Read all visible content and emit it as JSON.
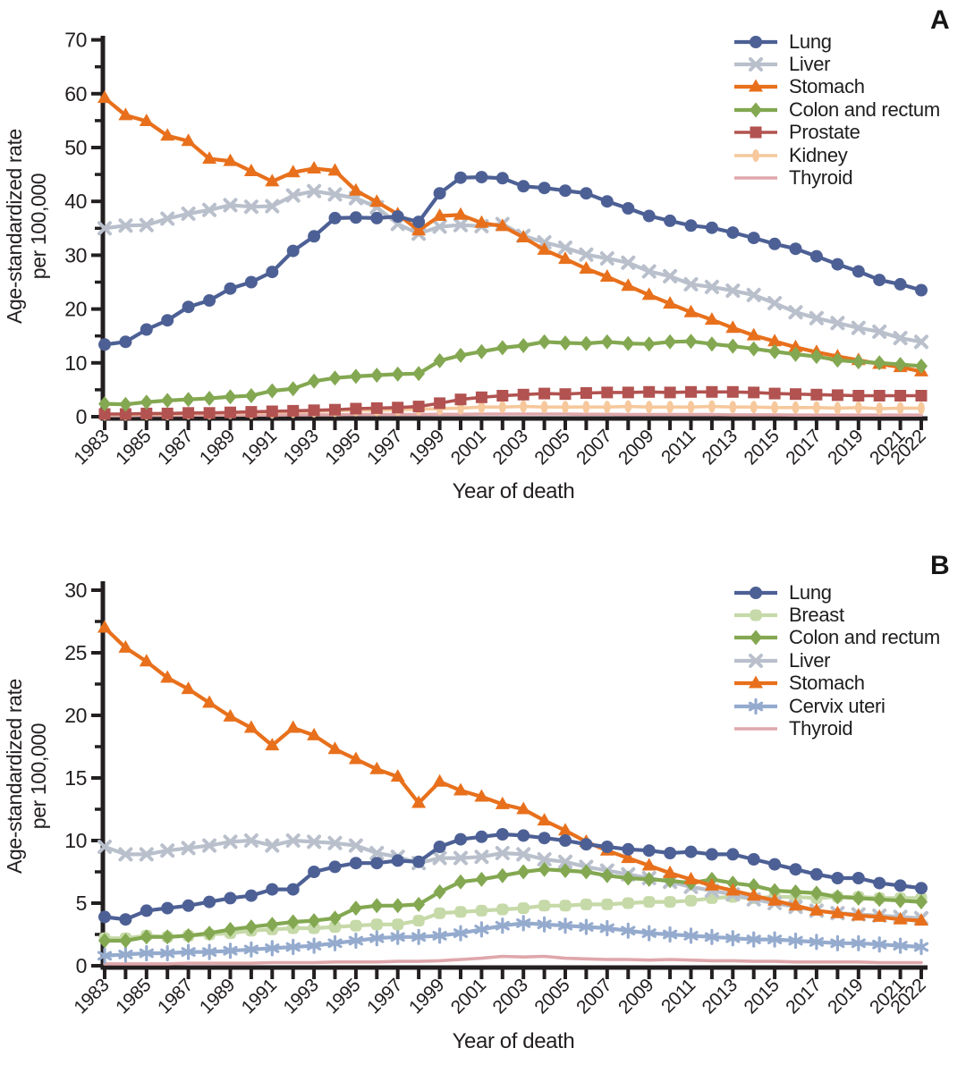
{
  "figure": {
    "background": "#ffffff",
    "axis_color": "#231f20",
    "text_color": "#231f20"
  },
  "chart_data": [
    {
      "type": "line",
      "panel_label": "A",
      "title": "",
      "xlabel": "Year of death",
      "ylabel_line1": "Age-standardized rate",
      "ylabel_line2": "per 100,000",
      "x": [
        1983,
        1984,
        1985,
        1986,
        1987,
        1988,
        1989,
        1990,
        1991,
        1992,
        1993,
        1994,
        1995,
        1996,
        1997,
        1998,
        1999,
        2000,
        2001,
        2002,
        2003,
        2004,
        2005,
        2006,
        2007,
        2008,
        2009,
        2010,
        2011,
        2012,
        2013,
        2014,
        2015,
        2016,
        2017,
        2018,
        2019,
        2020,
        2021,
        2022
      ],
      "x_tick_labels": [
        1983,
        1985,
        1987,
        1989,
        1991,
        1993,
        1995,
        1997,
        1999,
        2001,
        2003,
        2005,
        2007,
        2009,
        2011,
        2013,
        2015,
        2017,
        2019,
        2021,
        2022
      ],
      "ylim": [
        0,
        70
      ],
      "ytick_step": 10,
      "yminor_step": 5,
      "grid": false,
      "legend_position": "top-right",
      "draw_order": [
        6,
        5,
        4,
        1,
        2,
        3,
        0
      ],
      "series": [
        {
          "name": "Lung",
          "color": "#4d6095",
          "marker": "circle",
          "values": [
            13.4,
            13.9,
            16.2,
            17.9,
            20.4,
            21.6,
            23.8,
            25.0,
            26.9,
            30.8,
            33.5,
            36.9,
            37.0,
            36.9,
            37.2,
            36.2,
            41.5,
            44.4,
            44.5,
            44.3,
            42.8,
            42.5,
            42.0,
            41.5,
            40.0,
            38.7,
            37.3,
            36.4,
            35.5,
            35.1,
            34.2,
            33.2,
            32.1,
            31.2,
            29.8,
            28.3,
            27.0,
            25.4,
            24.6,
            23.5
          ]
        },
        {
          "name": "Liver",
          "color": "#b9c0cc",
          "marker": "x",
          "values": [
            35.0,
            35.5,
            35.6,
            36.8,
            37.7,
            38.4,
            39.3,
            39.0,
            39.1,
            41.1,
            41.9,
            41.3,
            40.6,
            38.9,
            35.8,
            34.0,
            35.3,
            35.6,
            35.4,
            35.8,
            33.6,
            32.4,
            31.4,
            30.1,
            29.4,
            28.6,
            27.0,
            26.1,
            24.6,
            24.1,
            23.4,
            22.6,
            21.1,
            19.4,
            18.3,
            17.4,
            16.5,
            15.8,
            14.6,
            13.9
          ]
        },
        {
          "name": "Stomach",
          "color": "#e8701c",
          "marker": "triangle",
          "values": [
            59.2,
            56.0,
            54.9,
            52.2,
            51.2,
            47.9,
            47.5,
            45.6,
            43.7,
            45.4,
            46.1,
            45.7,
            42.0,
            39.9,
            37.6,
            34.6,
            37.3,
            37.5,
            36.0,
            35.4,
            33.3,
            31.0,
            29.3,
            27.5,
            26.0,
            24.3,
            22.6,
            21.0,
            19.4,
            18.0,
            16.5,
            15.1,
            14.0,
            12.9,
            12.0,
            11.2,
            10.5,
            9.8,
            9.2,
            8.4
          ]
        },
        {
          "name": "Colon and rectum",
          "color": "#83a851",
          "marker": "diamond",
          "values": [
            2.4,
            2.3,
            2.7,
            3.0,
            3.2,
            3.4,
            3.7,
            3.9,
            4.8,
            5.2,
            6.6,
            7.2,
            7.5,
            7.7,
            7.9,
            8.0,
            10.4,
            11.4,
            12.1,
            12.8,
            13.2,
            13.9,
            13.7,
            13.6,
            13.9,
            13.6,
            13.5,
            13.9,
            14.0,
            13.5,
            13.1,
            12.6,
            12.1,
            11.6,
            11.2,
            10.5,
            10.2,
            10.0,
            9.7,
            9.4
          ]
        },
        {
          "name": "Prostate",
          "color": "#b25351",
          "marker": "square",
          "values": [
            0.5,
            0.5,
            0.6,
            0.6,
            0.7,
            0.7,
            0.8,
            0.9,
            1.0,
            1.1,
            1.2,
            1.3,
            1.5,
            1.6,
            1.7,
            1.9,
            2.5,
            3.2,
            3.6,
            3.9,
            4.1,
            4.3,
            4.2,
            4.4,
            4.5,
            4.5,
            4.6,
            4.5,
            4.6,
            4.6,
            4.6,
            4.5,
            4.3,
            4.2,
            4.1,
            4.0,
            3.9,
            3.9,
            3.9,
            3.9
          ]
        },
        {
          "name": "Kidney",
          "color": "#f6c89b",
          "marker": "ellipse",
          "values": [
            0.4,
            0.4,
            0.5,
            0.5,
            0.6,
            0.6,
            0.7,
            0.7,
            0.8,
            0.9,
            1.0,
            1.1,
            1.2,
            1.2,
            1.3,
            1.4,
            1.5,
            1.6,
            1.8,
            1.8,
            1.9,
            1.8,
            1.8,
            1.8,
            1.8,
            1.9,
            1.8,
            1.8,
            1.8,
            1.9,
            1.8,
            1.8,
            1.7,
            1.7,
            1.7,
            1.6,
            1.7,
            1.5,
            1.6,
            1.6
          ]
        },
        {
          "name": "Thyroid",
          "color": "#dfa7ab",
          "marker": "none",
          "values": [
            0.2,
            0.2,
            0.25,
            0.25,
            0.3,
            0.3,
            0.3,
            0.3,
            0.3,
            0.35,
            0.35,
            0.35,
            0.4,
            0.4,
            0.4,
            0.4,
            0.45,
            0.45,
            0.5,
            0.5,
            0.5,
            0.5,
            0.5,
            0.45,
            0.45,
            0.4,
            0.4,
            0.4,
            0.4,
            0.4,
            0.35,
            0.35,
            0.35,
            0.3,
            0.3,
            0.3,
            0.3,
            0.3,
            0.3,
            0.3
          ]
        }
      ]
    },
    {
      "type": "line",
      "panel_label": "B",
      "title": "",
      "xlabel": "Year of death",
      "ylabel_line1": "Age-standardized rate",
      "ylabel_line2": "per 100,000",
      "x": [
        1983,
        1984,
        1985,
        1986,
        1987,
        1988,
        1989,
        1990,
        1991,
        1992,
        1993,
        1994,
        1995,
        1996,
        1997,
        1998,
        1999,
        2000,
        2001,
        2002,
        2003,
        2004,
        2005,
        2006,
        2007,
        2008,
        2009,
        2010,
        2011,
        2012,
        2013,
        2014,
        2015,
        2016,
        2017,
        2018,
        2019,
        2020,
        2021,
        2022
      ],
      "x_tick_labels": [
        1983,
        1985,
        1987,
        1989,
        1991,
        1993,
        1995,
        1997,
        1999,
        2001,
        2003,
        2005,
        2007,
        2009,
        2011,
        2013,
        2015,
        2017,
        2019,
        2021,
        2022
      ],
      "ylim": [
        0,
        30
      ],
      "ytick_step": 5,
      "yminor_step": 2.5,
      "grid": false,
      "legend_position": "top-right",
      "draw_order": [
        6,
        5,
        1,
        3,
        2,
        4,
        0
      ],
      "series": [
        {
          "name": "Lung",
          "color": "#4d6095",
          "marker": "circle",
          "values": [
            3.9,
            3.7,
            4.4,
            4.6,
            4.8,
            5.1,
            5.4,
            5.6,
            6.1,
            6.1,
            7.5,
            7.9,
            8.2,
            8.2,
            8.4,
            8.3,
            9.5,
            10.1,
            10.3,
            10.5,
            10.4,
            10.2,
            10.0,
            9.7,
            9.5,
            9.3,
            9.2,
            9.0,
            9.1,
            8.9,
            8.9,
            8.5,
            8.1,
            7.7,
            7.3,
            7.0,
            7.0,
            6.6,
            6.4,
            6.2
          ]
        },
        {
          "name": "Breast",
          "color": "#c6d9a8",
          "marker": "square-round",
          "values": [
            2.2,
            2.2,
            2.4,
            2.3,
            2.4,
            2.5,
            2.6,
            2.8,
            2.9,
            3.0,
            3.0,
            3.1,
            3.2,
            3.3,
            3.3,
            3.6,
            4.2,
            4.3,
            4.4,
            4.5,
            4.6,
            4.8,
            4.8,
            4.9,
            4.9,
            5.0,
            5.1,
            5.1,
            5.2,
            5.4,
            5.5,
            5.4,
            5.5,
            5.5,
            5.4,
            5.5,
            5.5,
            5.4,
            5.4,
            5.4
          ]
        },
        {
          "name": "Colon and rectum",
          "color": "#83a851",
          "marker": "diamond",
          "values": [
            2.0,
            2.0,
            2.3,
            2.3,
            2.4,
            2.6,
            2.9,
            3.1,
            3.3,
            3.5,
            3.6,
            3.8,
            4.6,
            4.8,
            4.8,
            4.9,
            5.9,
            6.7,
            6.9,
            7.2,
            7.5,
            7.7,
            7.6,
            7.5,
            7.2,
            7.0,
            6.9,
            6.8,
            6.6,
            6.9,
            6.6,
            6.4,
            6.0,
            5.9,
            5.8,
            5.5,
            5.4,
            5.3,
            5.2,
            5.1
          ]
        },
        {
          "name": "Liver",
          "color": "#b9c0cc",
          "marker": "x",
          "values": [
            9.5,
            8.9,
            8.9,
            9.2,
            9.4,
            9.6,
            9.9,
            10.0,
            9.6,
            10.0,
            9.9,
            9.8,
            9.6,
            9.0,
            8.7,
            8.2,
            8.6,
            8.6,
            8.7,
            9.0,
            8.9,
            8.5,
            8.3,
            7.9,
            7.6,
            7.3,
            7.0,
            6.7,
            6.3,
            6.0,
            5.7,
            5.3,
            5.0,
            4.7,
            4.4,
            4.2,
            4.1,
            4.0,
            3.9,
            3.8
          ]
        },
        {
          "name": "Stomach",
          "color": "#e8701c",
          "marker": "triangle",
          "values": [
            27.0,
            25.4,
            24.3,
            23.0,
            22.1,
            21.0,
            19.9,
            19.0,
            17.6,
            19.0,
            18.4,
            17.3,
            16.5,
            15.7,
            15.1,
            13.0,
            14.7,
            14.0,
            13.5,
            12.9,
            12.5,
            11.6,
            10.8,
            9.9,
            9.2,
            8.6,
            8.0,
            7.4,
            6.9,
            6.4,
            6.0,
            5.6,
            5.2,
            4.8,
            4.4,
            4.2,
            4.0,
            3.9,
            3.7,
            3.6
          ]
        },
        {
          "name": "Cervix uteri",
          "color": "#95abce",
          "marker": "asterisk",
          "values": [
            0.8,
            0.9,
            1.0,
            1.0,
            1.1,
            1.1,
            1.2,
            1.3,
            1.4,
            1.5,
            1.6,
            1.8,
            2.0,
            2.2,
            2.3,
            2.3,
            2.4,
            2.6,
            2.9,
            3.2,
            3.4,
            3.3,
            3.2,
            3.1,
            3.0,
            2.8,
            2.6,
            2.5,
            2.4,
            2.3,
            2.2,
            2.1,
            2.1,
            2.0,
            1.9,
            1.8,
            1.8,
            1.7,
            1.6,
            1.5
          ]
        },
        {
          "name": "Thyroid",
          "color": "#dfa7ab",
          "marker": "none",
          "values": [
            0.15,
            0.15,
            0.15,
            0.15,
            0.2,
            0.2,
            0.2,
            0.2,
            0.25,
            0.25,
            0.25,
            0.3,
            0.3,
            0.3,
            0.35,
            0.35,
            0.4,
            0.5,
            0.6,
            0.75,
            0.7,
            0.75,
            0.6,
            0.55,
            0.5,
            0.5,
            0.45,
            0.5,
            0.45,
            0.4,
            0.4,
            0.35,
            0.35,
            0.3,
            0.3,
            0.3,
            0.3,
            0.25,
            0.25,
            0.25
          ]
        }
      ]
    }
  ]
}
